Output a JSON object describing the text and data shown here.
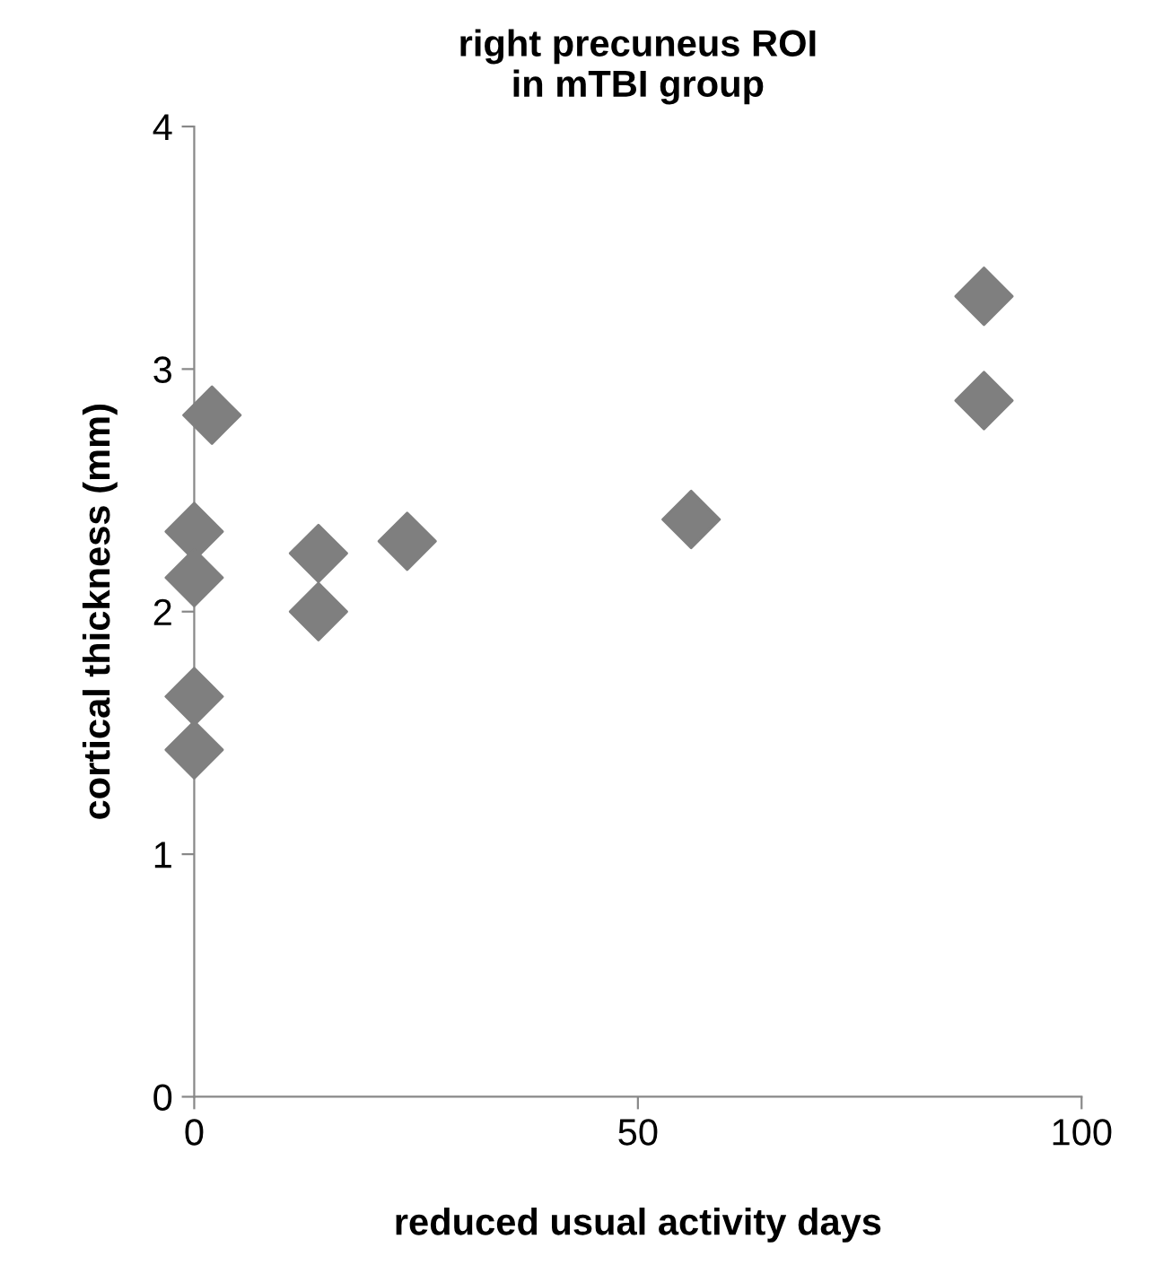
{
  "chart_data": {
    "type": "scatter",
    "title": "right precuneus ROI\nin mTBI group",
    "xlabel": "reduced usual activity days",
    "ylabel": "cortical thickness (mm)",
    "x": [
      0,
      0,
      0,
      0,
      2,
      14,
      14,
      24,
      56,
      89,
      89
    ],
    "series": [
      {
        "color": "#7f7f7f",
        "values": [
          2.33,
          2.14,
          1.65,
          1.43,
          2.81,
          2.24,
          2.0,
          2.29,
          2.38,
          3.3,
          2.87
        ]
      }
    ],
    "xlim": [
      0,
      100
    ],
    "xticks": [
      0,
      50,
      100
    ],
    "ylim": [
      0,
      4
    ],
    "yticks": [
      0,
      1,
      2,
      3,
      4
    ],
    "marker": "diamond",
    "grid": false,
    "legend": false
  }
}
